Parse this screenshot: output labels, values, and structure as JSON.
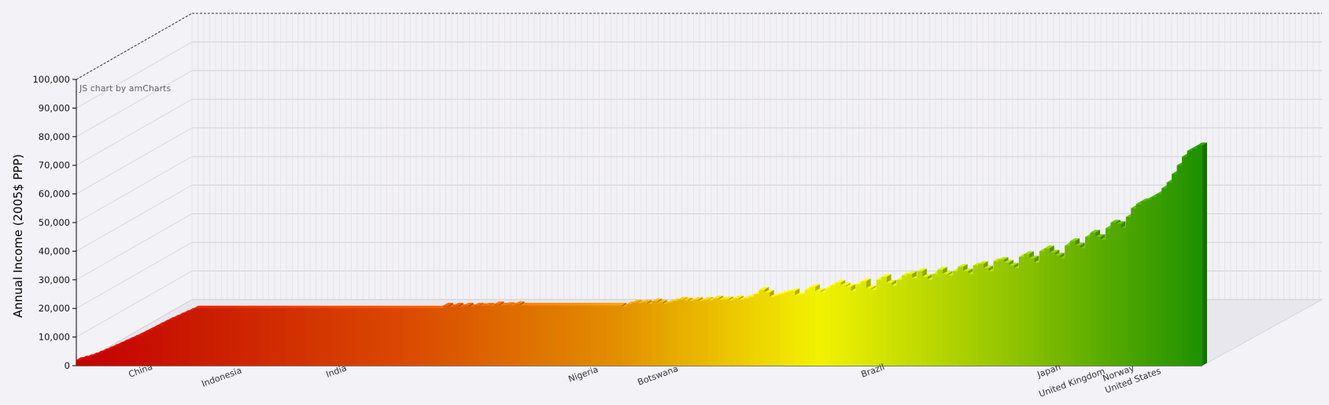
{
  "chart_data": {
    "type": "bar",
    "subtype": "3d-stacked-column",
    "title": "",
    "xlabel": "",
    "ylabel": "Annual Income (2005$ PPP)",
    "ylim": [
      0,
      100000
    ],
    "y_ticks": [
      "0",
      "10,000",
      "20,000",
      "30,000",
      "40,000",
      "50,000",
      "60,000",
      "70,000",
      "80,000",
      "90,000",
      "100,000"
    ],
    "grid": true,
    "legend": "none",
    "credit": "JS chart by amCharts",
    "labeled_categories": [
      "China",
      "Indonesia",
      "India",
      "Nigeria",
      "Botswana",
      "Brazil",
      "Japan",
      "United Kingdom",
      "Norway",
      "United States"
    ],
    "colors": {
      "low": "#cc0000",
      "mid_low": "#ee8800",
      "mid": "#ffff00",
      "high": "#229900",
      "background": "#f3f2f7"
    },
    "series_top_income": [
      2000,
      2500,
      3000,
      3600,
      4300,
      5000,
      5800,
      6600,
      7400,
      8200,
      9000,
      9800,
      10600,
      11500,
      12400,
      13300,
      14200,
      15100,
      16000,
      16800,
      17600,
      18400,
      19200,
      20000,
      20000,
      20000,
      20000,
      20000,
      20000,
      20000,
      20000,
      20000,
      20000,
      20000,
      20000,
      20000,
      20000,
      20000,
      20000,
      20000,
      20000,
      20000,
      20000,
      20000,
      20000,
      20000,
      20000,
      20000,
      20000,
      20000,
      20000,
      20000,
      20000,
      20000,
      20000,
      20000,
      20000,
      20000,
      20000,
      20000,
      20000,
      20000,
      20000,
      20000,
      20000,
      20000,
      20000,
      20000,
      20000,
      20000,
      20000,
      20000,
      21000,
      20500,
      21000,
      20500,
      21000,
      20500,
      21000,
      20800,
      21000,
      20800,
      21500,
      21000,
      21200,
      21000,
      21500,
      21000,
      21000,
      21000,
      21000,
      21000,
      21000,
      21000,
      21000,
      21000,
      21000,
      21000,
      21000,
      21000,
      21000,
      21000,
      21000,
      21000,
      21000,
      21000,
      21000,
      20500,
      21500,
      22000,
      21800,
      22000,
      21500,
      22500,
      22000,
      21500,
      22000,
      22500,
      23000,
      22800,
      22500,
      23000,
      22500,
      23000,
      22800,
      23500,
      23000,
      23200,
      22800,
      23500,
      23000,
      23500,
      24000,
      25000,
      26500,
      25500,
      24000,
      24500,
      25000,
      25500,
      26000,
      24500,
      25000,
      26500,
      27500,
      26000,
      25500,
      27000,
      28000,
      29000,
      28000,
      27500,
      26000,
      28500,
      29500,
      27000,
      26500,
      30000,
      31000,
      29000,
      28000,
      30000,
      31500,
      32000,
      30500,
      33000,
      31000,
      30000,
      32000,
      33500,
      32000,
      31500,
      33000,
      34500,
      33000,
      32000,
      35000,
      35500,
      34000,
      33000,
      36500,
      37000,
      36000,
      35000,
      34000,
      38000,
      39000,
      37500,
      36000,
      40000,
      41000,
      39500,
      38500,
      37500,
      42000,
      43500,
      42000,
      41000,
      45000,
      46500,
      45000,
      44000,
      48000,
      50000,
      49500,
      48000,
      52000,
      55000,
      56500,
      57500,
      58000,
      59000,
      60000,
      62000,
      64000,
      67000,
      70000,
      73000,
      75000,
      76000,
      77000
    ],
    "n_bars": 220
  }
}
